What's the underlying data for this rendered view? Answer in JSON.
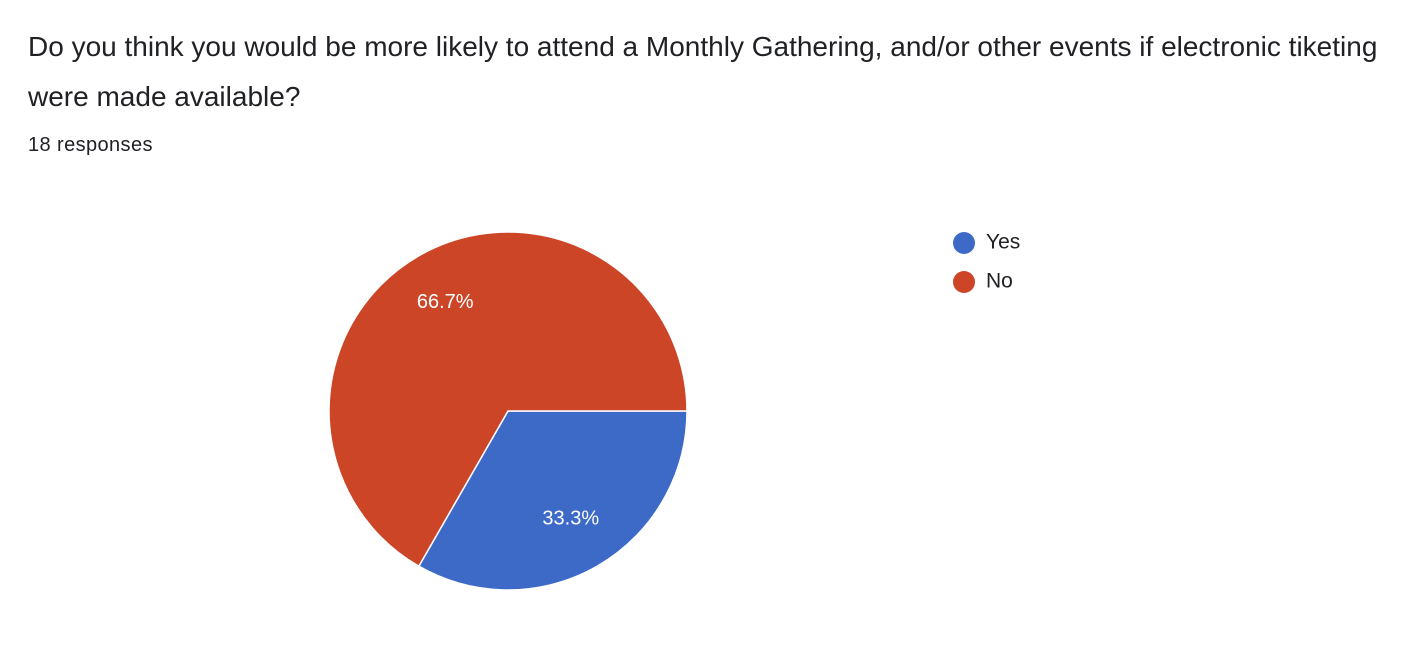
{
  "chart_data": {
    "type": "pie",
    "title": "Do you think you would be more likely to attend a Monthly Gathering, and/or other events if electronic tiketing were made available?",
    "subtitle": "18 responses",
    "categories": [
      "Yes",
      "No"
    ],
    "values": [
      33.3,
      66.7
    ],
    "value_labels": [
      "33.3%",
      "66.7%"
    ],
    "colors": [
      "#3d69c7",
      "#cc4527"
    ]
  }
}
